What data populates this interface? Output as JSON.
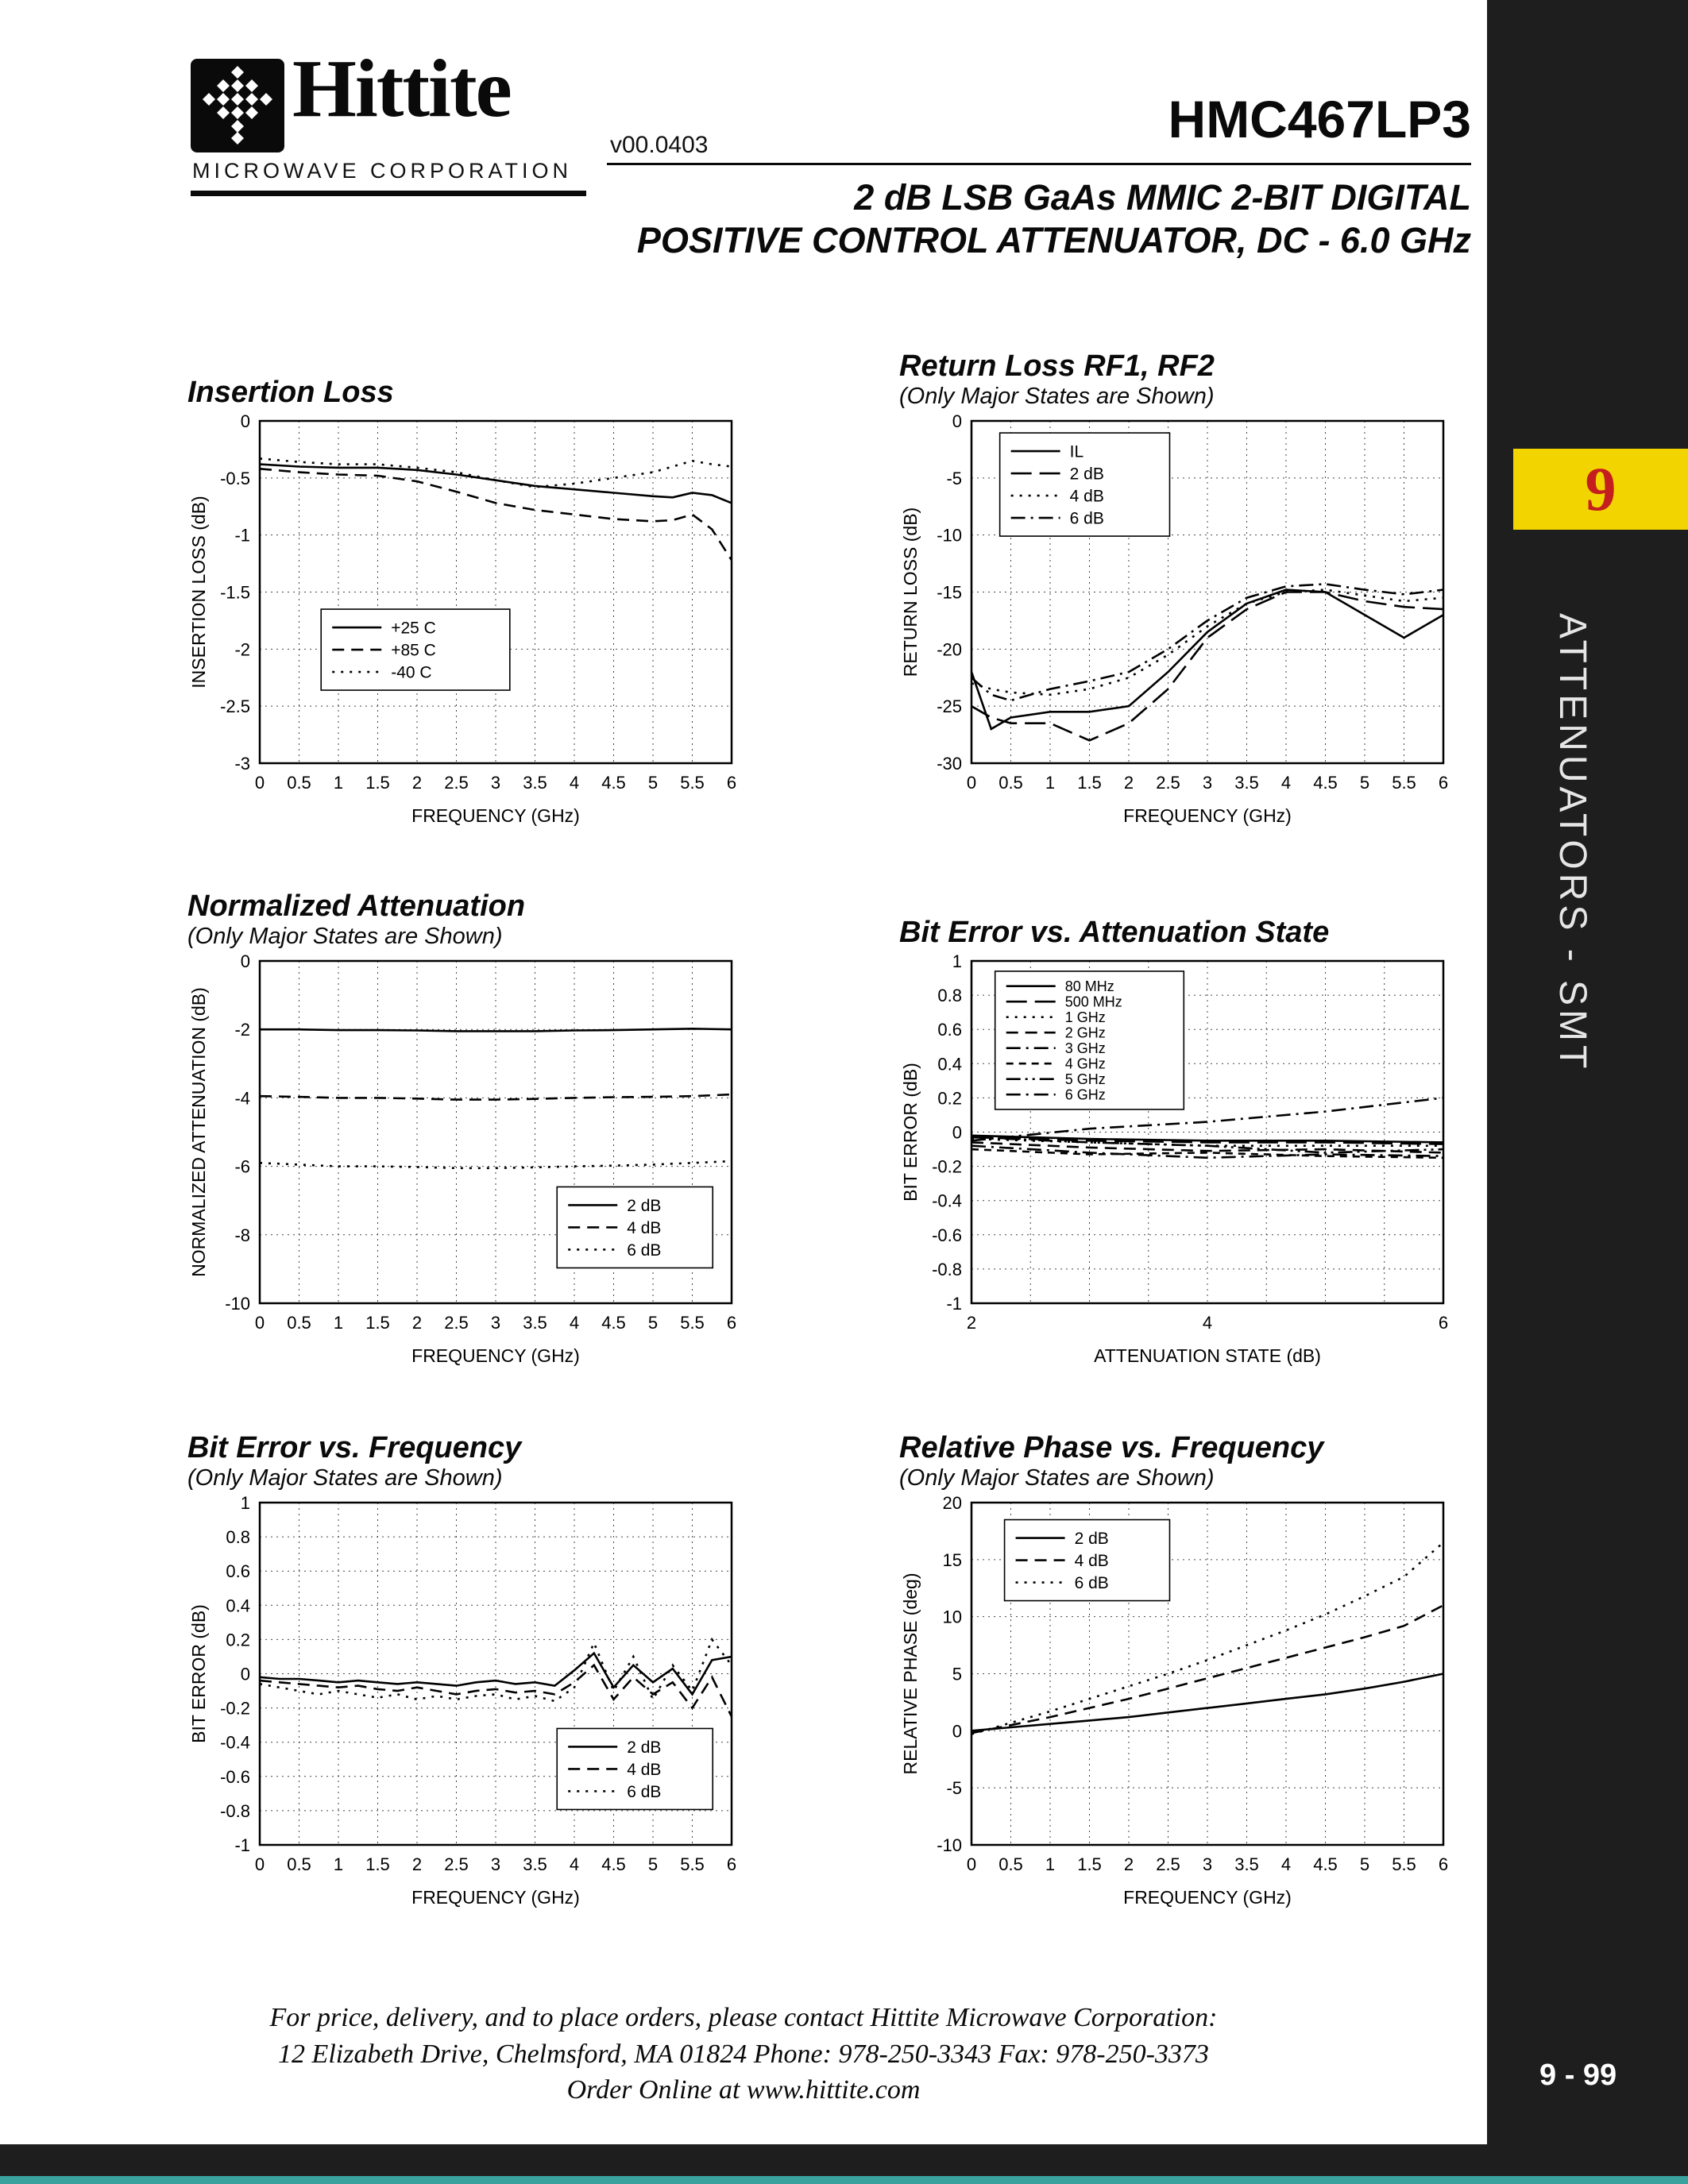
{
  "page": {
    "bg_dark": "#1e1e1e",
    "tab_yellow": "#f2d400",
    "tab_number_red": "#c41e1e",
    "teal_strip": "#3aa39d"
  },
  "header": {
    "logo_text": "Hittite",
    "logo_sub": "MICROWAVE CORPORATION",
    "version": "v00.0403",
    "part_number": "HMC467LP3",
    "subtitle_line1": "2 dB LSB GaAs MMIC 2-BIT DIGITAL",
    "subtitle_line2": "POSITIVE CONTROL ATTENUATOR, DC - 6.0 GHz"
  },
  "sidebar": {
    "section_number": "9",
    "section_label": "ATTENUATORS - SMT",
    "page_number": "9 - 99"
  },
  "footer": {
    "line1": "For price, delivery, and to place orders, please contact Hittite Microwave Corporation:",
    "line2": "12 Elizabeth Drive, Chelmsford, MA 01824 Phone: 978-250-3343  Fax: 978-250-3373",
    "line3": "Order Online at www.hittite.com"
  },
  "chart_data": [
    {
      "id": "insertion-loss",
      "type": "line",
      "title": "Insertion Loss",
      "subtitle": "",
      "xlabel": "FREQUENCY (GHz)",
      "ylabel": "INSERTION LOSS (dB)",
      "xlim": [
        0,
        6
      ],
      "ylim": [
        -3,
        0
      ],
      "x_ticks": [
        0,
        0.5,
        1,
        1.5,
        2,
        2.5,
        3,
        3.5,
        4,
        4.5,
        5,
        5.5,
        6
      ],
      "y_ticks": [
        0,
        -0.5,
        -1,
        -1.5,
        -2,
        -2.5,
        -3
      ],
      "grid": true,
      "x": [
        0,
        0.5,
        1,
        1.5,
        2,
        2.5,
        3,
        3.5,
        4,
        4.5,
        5,
        5.25,
        5.5,
        5.75,
        6
      ],
      "series": [
        {
          "name": "+25 C",
          "style": "solid",
          "values": [
            -0.38,
            -0.4,
            -0.41,
            -0.41,
            -0.43,
            -0.47,
            -0.52,
            -0.57,
            -0.6,
            -0.63,
            -0.66,
            -0.67,
            -0.63,
            -0.65,
            -0.72
          ]
        },
        {
          "name": "+85 C",
          "style": "dash",
          "values": [
            -0.42,
            -0.45,
            -0.47,
            -0.48,
            -0.53,
            -0.62,
            -0.72,
            -0.78,
            -0.82,
            -0.86,
            -0.88,
            -0.87,
            -0.82,
            -0.95,
            -1.22
          ]
        },
        {
          "name": "-40 C",
          "style": "dot",
          "values": [
            -0.33,
            -0.36,
            -0.38,
            -0.38,
            -0.41,
            -0.45,
            -0.52,
            -0.58,
            -0.55,
            -0.5,
            -0.45,
            -0.4,
            -0.35,
            -0.38,
            -0.4
          ]
        }
      ],
      "legend": {
        "x": 0.13,
        "y": 0.55,
        "w": 0.4
      }
    },
    {
      "id": "return-loss",
      "type": "line",
      "title": "Return Loss RF1, RF2",
      "subtitle": "(Only Major States are Shown)",
      "xlabel": "FREQUENCY (GHz)",
      "ylabel": "RETURN LOSS (dB)",
      "xlim": [
        0,
        6
      ],
      "ylim": [
        -30,
        0
      ],
      "x_ticks": [
        0,
        0.5,
        1,
        1.5,
        2,
        2.5,
        3,
        3.5,
        4,
        4.5,
        5,
        5.5,
        6
      ],
      "y_ticks": [
        0,
        -5,
        -10,
        -15,
        -20,
        -25,
        -30
      ],
      "grid": true,
      "x": [
        0,
        0.25,
        0.5,
        1,
        1.5,
        2,
        2.5,
        3,
        3.5,
        4,
        4.5,
        5,
        5.5,
        6
      ],
      "series": [
        {
          "name": "IL",
          "style": "solid",
          "values": [
            -22,
            -27,
            -26,
            -25.5,
            -25.5,
            -25,
            -22,
            -18.5,
            -16,
            -14.8,
            -15,
            -17,
            -19,
            -17
          ]
        },
        {
          "name": "2 dB",
          "style": "longdash",
          "values": [
            -25,
            -26,
            -26.5,
            -26.5,
            -28,
            -26.5,
            -23.5,
            -19,
            -16.5,
            -15,
            -15,
            -15.8,
            -16.3,
            -16.5
          ]
        },
        {
          "name": "4 dB",
          "style": "dot",
          "values": [
            -23,
            -23.5,
            -23.8,
            -24,
            -23.5,
            -22.5,
            -20.5,
            -18,
            -16,
            -15,
            -14.8,
            -15.3,
            -15.8,
            -15.5
          ]
        },
        {
          "name": "6 dB",
          "style": "dashdot",
          "values": [
            -22.5,
            -24,
            -24.5,
            -23.5,
            -22.8,
            -22,
            -20,
            -17.5,
            -15.5,
            -14.5,
            -14.3,
            -14.8,
            -15.2,
            -14.8
          ]
        }
      ],
      "legend": {
        "x": 0.06,
        "y": 0.035,
        "w": 0.36
      }
    },
    {
      "id": "normalized-attenuation",
      "type": "line",
      "title": "Normalized Attenuation",
      "subtitle": "(Only Major States are Shown)",
      "xlabel": "FREQUENCY (GHz)",
      "ylabel": "NORMALIZED ATTENUATION (dB)",
      "xlim": [
        0,
        6
      ],
      "ylim": [
        -10,
        0
      ],
      "x_ticks": [
        0,
        0.5,
        1,
        1.5,
        2,
        2.5,
        3,
        3.5,
        4,
        4.5,
        5,
        5.5,
        6
      ],
      "y_ticks": [
        0,
        -2,
        -4,
        -6,
        -8,
        -10
      ],
      "grid": true,
      "x": [
        0,
        0.5,
        1,
        1.5,
        2,
        2.5,
        3,
        3.5,
        4,
        4.5,
        5,
        5.5,
        6
      ],
      "series": [
        {
          "name": "2 dB",
          "style": "solid",
          "values": [
            -2.0,
            -2.0,
            -2.02,
            -2.02,
            -2.03,
            -2.05,
            -2.05,
            -2.05,
            -2.03,
            -2.02,
            -2.0,
            -1.98,
            -2.0
          ]
        },
        {
          "name": "4 dB",
          "style": "dash",
          "values": [
            -3.95,
            -3.97,
            -4.0,
            -4.0,
            -4.02,
            -4.05,
            -4.05,
            -4.03,
            -4.0,
            -3.98,
            -3.97,
            -3.95,
            -3.9
          ]
        },
        {
          "name": "6 dB",
          "style": "dot",
          "values": [
            -5.9,
            -5.95,
            -6.0,
            -6.0,
            -6.02,
            -6.05,
            -6.05,
            -6.03,
            -6.0,
            -5.98,
            -5.95,
            -5.9,
            -5.85
          ]
        }
      ],
      "legend": {
        "x": 0.63,
        "y": 0.66,
        "w": 0.33
      }
    },
    {
      "id": "bit-error-vs-attenuation-state",
      "type": "line",
      "title": "Bit Error vs. Attenuation State",
      "subtitle": "",
      "xlabel": "ATTENUATION STATE (dB)",
      "ylabel": "BIT ERROR (dB)",
      "xlim": [
        2,
        6
      ],
      "ylim": [
        -1,
        1
      ],
      "x_ticks": [
        2,
        2.5,
        3,
        3.5,
        4,
        4.5,
        5,
        5.5,
        6
      ],
      "x_label_ticks": [
        2,
        4,
        6
      ],
      "y_ticks": [
        1,
        0.8,
        0.6,
        0.4,
        0.2,
        0,
        -0.2,
        -0.4,
        -0.6,
        -0.8,
        -1
      ],
      "grid": true,
      "x": [
        2,
        3,
        4,
        5,
        6
      ],
      "series": [
        {
          "name": "80 MHz",
          "style": "solid",
          "values": [
            -0.02,
            -0.04,
            -0.05,
            -0.05,
            -0.06
          ]
        },
        {
          "name": "500 MHz",
          "style": "longdash",
          "values": [
            -0.03,
            -0.05,
            -0.06,
            -0.06,
            -0.07
          ]
        },
        {
          "name": "1 GHz",
          "style": "dot",
          "values": [
            -0.04,
            -0.06,
            -0.08,
            -0.08,
            -0.08
          ]
        },
        {
          "name": "2 GHz",
          "style": "dash",
          "values": [
            -0.06,
            -0.09,
            -0.11,
            -0.1,
            -0.12
          ]
        },
        {
          "name": "3 GHz",
          "style": "dashdot",
          "values": [
            -0.08,
            -0.12,
            -0.15,
            -0.13,
            -0.14
          ]
        },
        {
          "name": "4 GHz",
          "style": "shortdash",
          "values": [
            -0.1,
            -0.13,
            -0.12,
            -0.14,
            -0.15
          ]
        },
        {
          "name": "5 GHz",
          "style": "dashdotdot",
          "values": [
            -0.03,
            -0.06,
            -0.08,
            -0.12,
            -0.1
          ]
        },
        {
          "name": "6 GHz",
          "style": "dashdot",
          "values": [
            -0.05,
            0.02,
            0.06,
            0.12,
            0.2
          ]
        }
      ],
      "legend": {
        "x": 0.05,
        "y": 0.03,
        "w": 0.4,
        "row_h": 19.5,
        "font": 18
      }
    },
    {
      "id": "bit-error-vs-frequency",
      "type": "line",
      "title": "Bit Error vs. Frequency",
      "subtitle": "(Only Major States are Shown)",
      "xlabel": "FREQUENCY (GHz)",
      "ylabel": "BIT ERROR (dB)",
      "xlim": [
        0,
        6
      ],
      "ylim": [
        -1,
        1
      ],
      "x_ticks": [
        0,
        0.5,
        1,
        1.5,
        2,
        2.5,
        3,
        3.5,
        4,
        4.5,
        5,
        5.5,
        6
      ],
      "y_ticks": [
        1,
        0.8,
        0.6,
        0.4,
        0.2,
        0,
        -0.2,
        -0.4,
        -0.6,
        -0.8,
        -1
      ],
      "grid": true,
      "x": [
        0,
        0.25,
        0.5,
        0.75,
        1,
        1.25,
        1.5,
        1.75,
        2,
        2.25,
        2.5,
        2.75,
        3,
        3.25,
        3.5,
        3.75,
        4,
        4.25,
        4.5,
        4.75,
        5,
        5.25,
        5.5,
        5.75,
        6
      ],
      "series": [
        {
          "name": "2 dB",
          "style": "solid",
          "values": [
            -0.02,
            -0.03,
            -0.03,
            -0.04,
            -0.05,
            -0.04,
            -0.05,
            -0.06,
            -0.05,
            -0.06,
            -0.07,
            -0.05,
            -0.04,
            -0.06,
            -0.05,
            -0.07,
            0.02,
            0.12,
            -0.08,
            0.05,
            -0.05,
            0.03,
            -0.12,
            0.08,
            0.1
          ]
        },
        {
          "name": "4 dB",
          "style": "dash",
          "values": [
            -0.04,
            -0.05,
            -0.06,
            -0.07,
            -0.08,
            -0.07,
            -0.09,
            -0.1,
            -0.08,
            -0.1,
            -0.12,
            -0.1,
            -0.09,
            -0.11,
            -0.1,
            -0.12,
            -0.05,
            0.05,
            -0.15,
            -0.02,
            -0.12,
            -0.05,
            -0.2,
            -0.02,
            -0.25
          ]
        },
        {
          "name": "6 dB",
          "style": "dot",
          "values": [
            -0.06,
            -0.08,
            -0.1,
            -0.12,
            -0.1,
            -0.12,
            -0.14,
            -0.12,
            -0.15,
            -0.13,
            -0.15,
            -0.13,
            -0.12,
            -0.15,
            -0.13,
            -0.16,
            -0.08,
            0.18,
            -0.1,
            0.1,
            -0.15,
            0.05,
            -0.1,
            0.2,
            0.05
          ]
        }
      ],
      "legend": {
        "x": 0.63,
        "y": 0.66,
        "w": 0.33
      }
    },
    {
      "id": "relative-phase-vs-frequency",
      "type": "line",
      "title": "Relative Phase vs. Frequency",
      "subtitle": "(Only Major States are Shown)",
      "xlabel": "FREQUENCY (GHz)",
      "ylabel": "RELATIVE PHASE (deg)",
      "xlim": [
        0,
        6
      ],
      "ylim": [
        -10,
        20
      ],
      "x_ticks": [
        0,
        0.5,
        1,
        1.5,
        2,
        2.5,
        3,
        3.5,
        4,
        4.5,
        5,
        5.5,
        6
      ],
      "y_ticks": [
        20,
        15,
        10,
        5,
        0,
        -5,
        -10
      ],
      "grid": true,
      "x": [
        0,
        0.5,
        1,
        1.5,
        2,
        2.5,
        3,
        3.5,
        4,
        4.5,
        5,
        5.5,
        6
      ],
      "series": [
        {
          "name": "2 dB",
          "style": "solid",
          "values": [
            0,
            0.3,
            0.6,
            0.9,
            1.2,
            1.6,
            2.0,
            2.4,
            2.8,
            3.2,
            3.7,
            4.3,
            5.0
          ]
        },
        {
          "name": "4 dB",
          "style": "dash",
          "values": [
            -0.2,
            0.5,
            1.2,
            2.0,
            2.8,
            3.7,
            4.6,
            5.5,
            6.4,
            7.3,
            8.2,
            9.2,
            11.0
          ]
        },
        {
          "name": "6 dB",
          "style": "dot",
          "values": [
            -0.3,
            0.7,
            1.7,
            2.8,
            3.9,
            5.0,
            6.2,
            7.5,
            8.8,
            10.2,
            11.8,
            13.5,
            16.5
          ]
        }
      ],
      "legend": {
        "x": 0.07,
        "y": 0.05,
        "w": 0.35
      }
    }
  ]
}
